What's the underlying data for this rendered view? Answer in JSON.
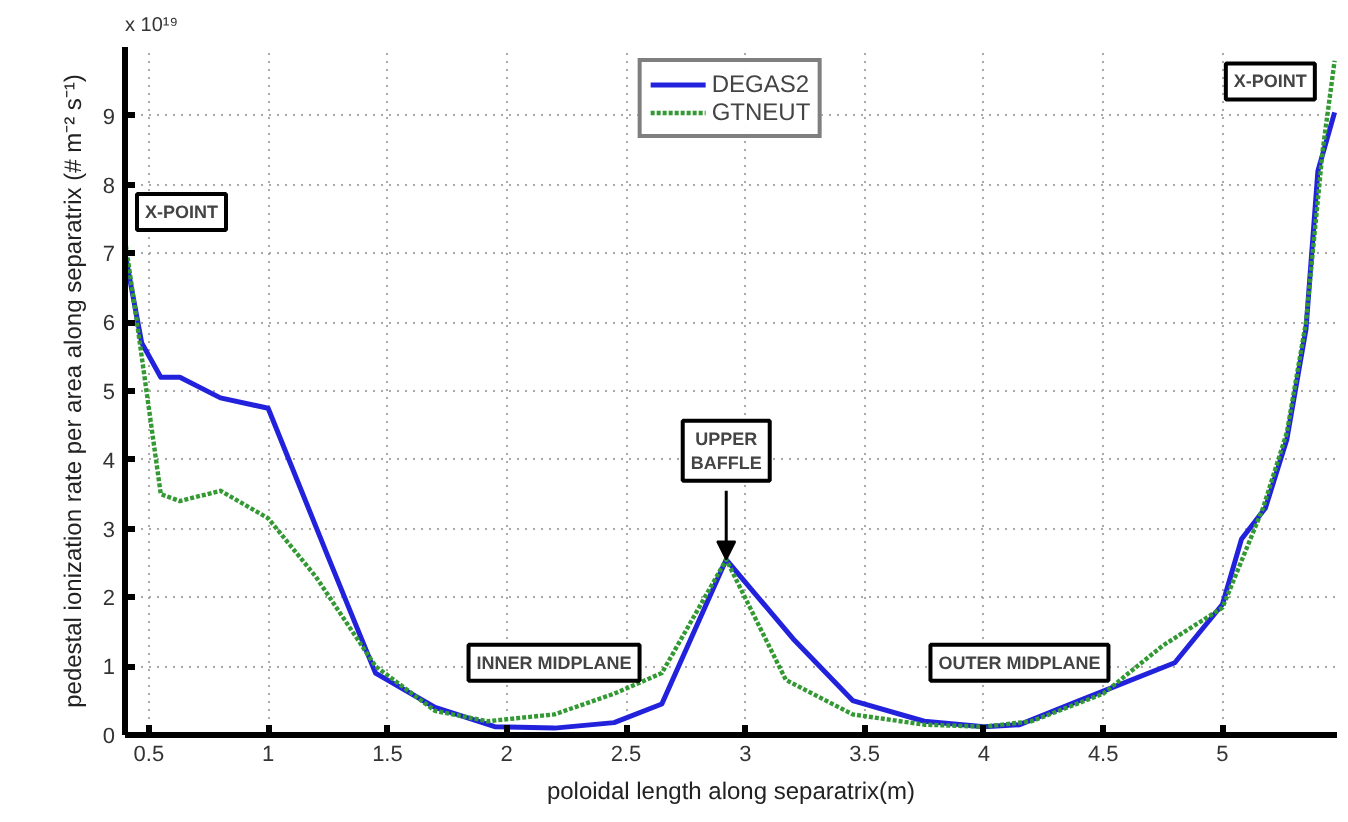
{
  "chart_data": {
    "type": "line",
    "xlabel": "poloidal length along separatrix(m)",
    "ylabel": "pedestal ionization rate per area along separatrix (# m⁻² s⁻¹)",
    "xlim": [
      0.4,
      5.48
    ],
    "ylim": [
      0,
      10
    ],
    "xticks": [
      0.5,
      1,
      1.5,
      2,
      2.5,
      3,
      3.5,
      4,
      4.5,
      5
    ],
    "yticks": [
      0,
      1,
      2,
      3,
      4,
      5,
      6,
      7,
      8,
      9
    ],
    "grid": true,
    "legend": "top",
    "marker": "none",
    "annotations": [
      "x 10¹⁹",
      "X-POINT",
      {
        "text": "UPPER BAFFLE",
        "x": 2.92,
        "y": 2.55
      },
      "INNER MIDPLANE",
      "OUTER MIDPLANE",
      "X-POINT"
    ],
    "series": [
      {
        "name": "DEGAS2",
        "color": "#2222dd",
        "line_style": "solid",
        "x": [
          0.4,
          0.47,
          0.55,
          0.63,
          0.8,
          1.0,
          1.25,
          1.45,
          1.7,
          1.95,
          2.2,
          2.45,
          2.65,
          2.92,
          3.2,
          3.45,
          3.75,
          4.0,
          4.15,
          4.4,
          4.8,
          5.0,
          5.08,
          5.18,
          5.27,
          5.35,
          5.4,
          5.47
        ],
        "values": [
          7.0,
          5.7,
          5.2,
          5.2,
          4.9,
          4.75,
          2.6,
          0.9,
          0.4,
          0.12,
          0.1,
          0.18,
          0.45,
          2.55,
          1.4,
          0.5,
          0.2,
          0.12,
          0.15,
          0.5,
          1.05,
          1.9,
          2.85,
          3.3,
          4.3,
          5.9,
          8.2,
          9.05
        ]
      },
      {
        "name": "GTNEUT",
        "color": "#339933",
        "line_style": "dotted",
        "x": [
          0.4,
          0.45,
          0.55,
          0.63,
          0.8,
          1.0,
          1.2,
          1.45,
          1.7,
          1.92,
          2.2,
          2.45,
          2.65,
          2.92,
          3.17,
          3.45,
          3.75,
          4.0,
          4.2,
          4.5,
          4.75,
          5.0,
          5.17,
          5.27,
          5.35,
          5.42,
          5.47
        ],
        "values": [
          7.2,
          6.0,
          3.5,
          3.4,
          3.55,
          3.15,
          2.3,
          1.0,
          0.35,
          0.2,
          0.3,
          0.6,
          0.9,
          2.55,
          0.8,
          0.3,
          0.15,
          0.12,
          0.2,
          0.6,
          1.3,
          1.85,
          3.3,
          4.4,
          6.0,
          8.5,
          9.8
        ]
      }
    ]
  }
}
